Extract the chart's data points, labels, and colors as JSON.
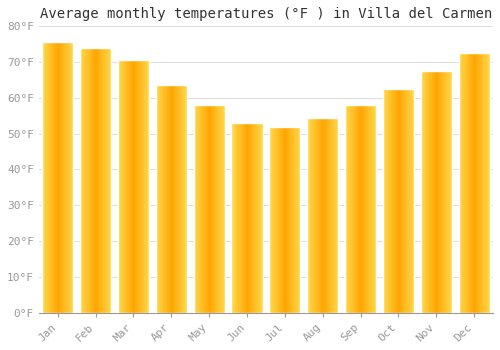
{
  "title": "Average monthly temperatures (°F ) in Villa del Carmen",
  "months": [
    "Jan",
    "Feb",
    "Mar",
    "Apr",
    "May",
    "Jun",
    "Jul",
    "Aug",
    "Sep",
    "Oct",
    "Nov",
    "Dec"
  ],
  "values": [
    75.5,
    74.0,
    70.5,
    63.5,
    58.0,
    53.0,
    52.0,
    54.5,
    58.0,
    62.5,
    67.5,
    72.5
  ],
  "bar_color_center": "#FFA500",
  "bar_color_edge": "#F5C842",
  "background_color": "#FFFFFF",
  "plot_bg_color": "#FFFFFF",
  "grid_color": "#DDDDDD",
  "ylim": [
    0,
    80
  ],
  "ytick_step": 10,
  "title_fontsize": 10,
  "tick_fontsize": 8,
  "tick_color": "#999999",
  "title_color": "#333333",
  "font_family": "monospace",
  "bar_width": 0.82
}
